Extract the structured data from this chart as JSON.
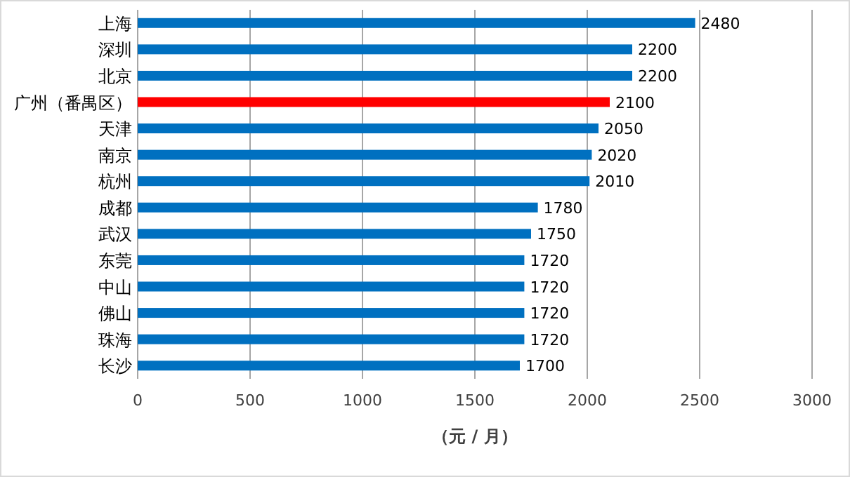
{
  "chart_data": {
    "type": "bar",
    "orientation": "horizontal",
    "xlabel": "（元 / 月）",
    "categories": [
      "上海",
      "深圳",
      "北京",
      "广州（番禺区）",
      "天津",
      "南京",
      "杭州",
      "成都",
      "武汉",
      "东莞",
      "中山",
      "佛山",
      "珠海",
      "长沙"
    ],
    "values": [
      2480,
      2200,
      2200,
      2100,
      2050,
      2020,
      2010,
      1780,
      1750,
      1720,
      1720,
      1720,
      1720,
      1700
    ],
    "colors": [
      "#0070c0",
      "#0070c0",
      "#0070c0",
      "#ff0000",
      "#0070c0",
      "#0070c0",
      "#0070c0",
      "#0070c0",
      "#0070c0",
      "#0070c0",
      "#0070c0",
      "#0070c0",
      "#0070c0",
      "#0070c0"
    ],
    "xlim": [
      0,
      3000
    ],
    "xticks": [
      0,
      500,
      1000,
      1500,
      2000,
      2500,
      3000
    ],
    "grid": "x",
    "data_labels": true
  }
}
